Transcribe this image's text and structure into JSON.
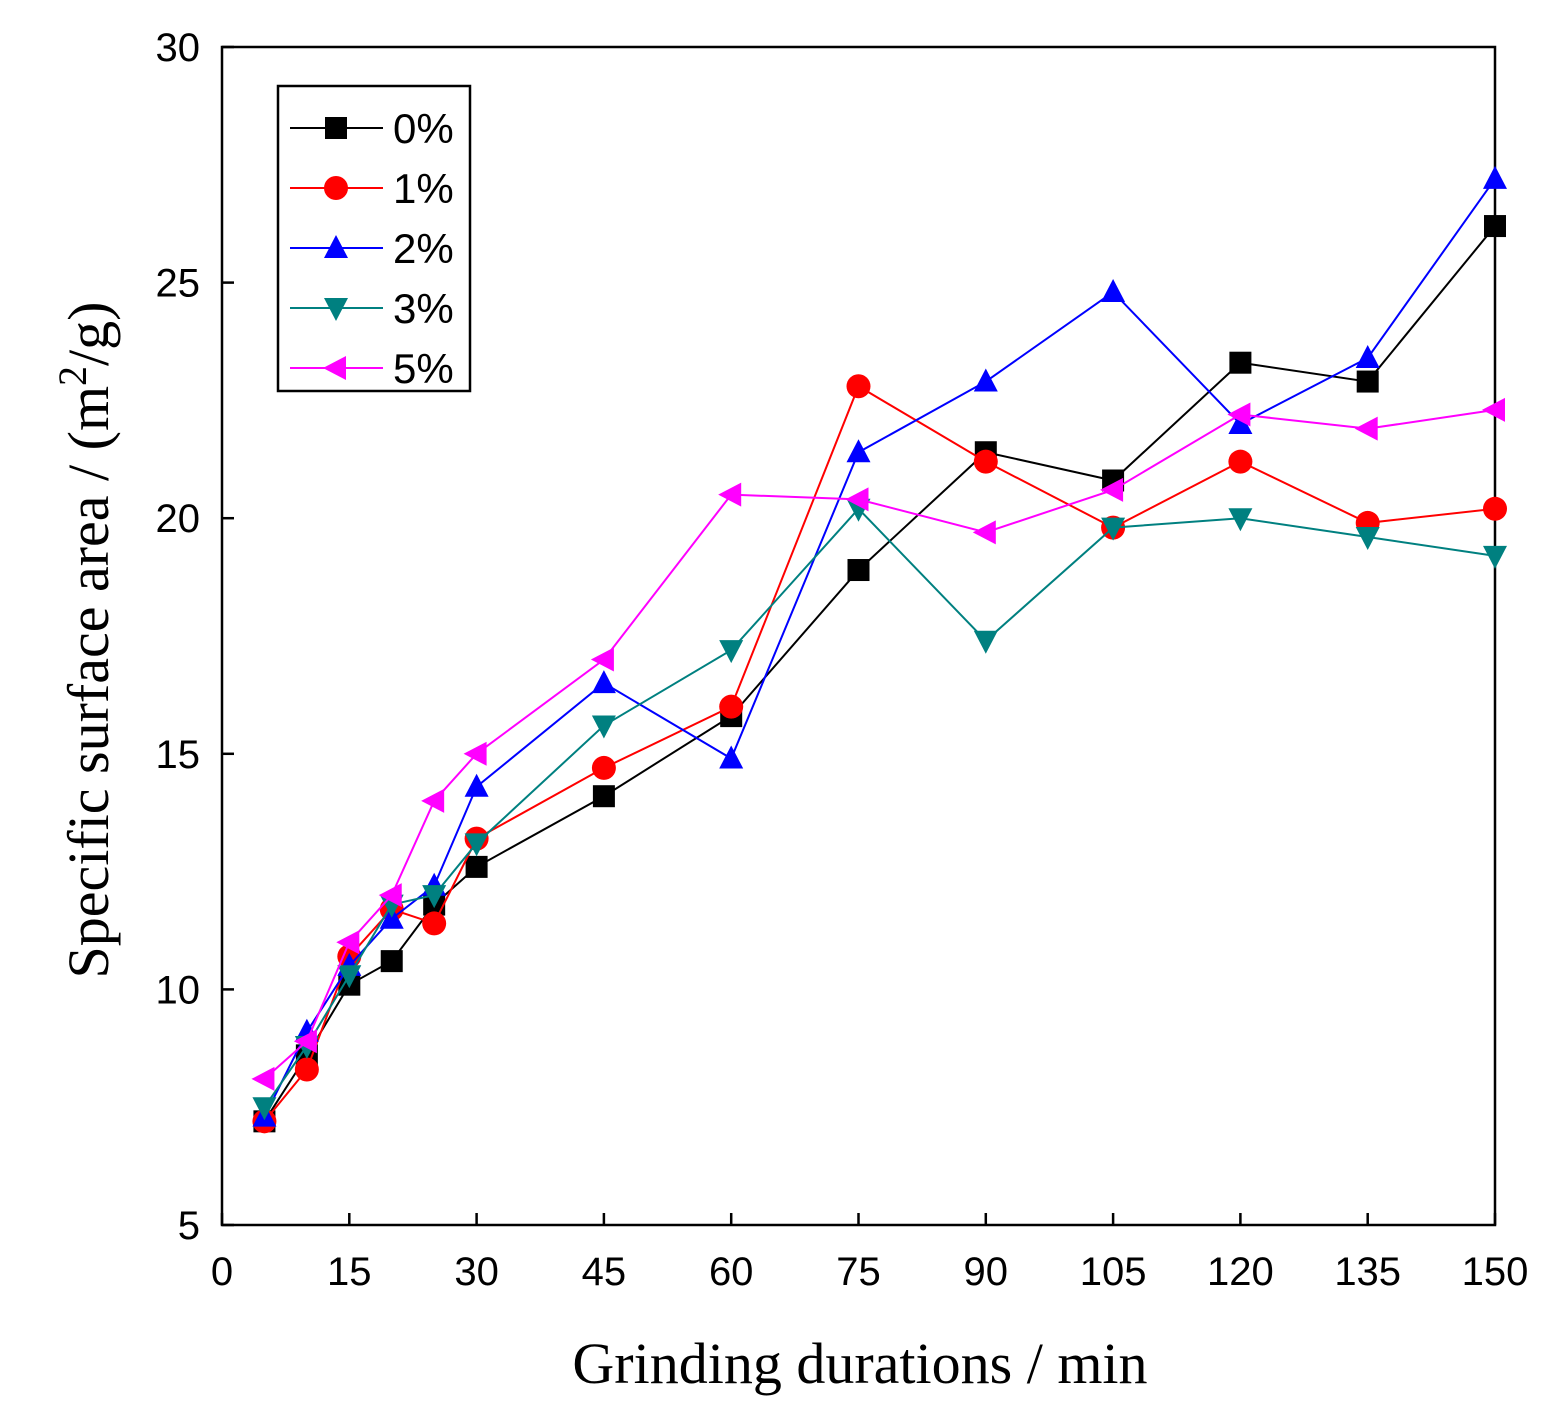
{
  "chart_data": {
    "type": "line",
    "title": "",
    "xlabel": "Grinding durations / min",
    "ylabel_prefix": "Specific surface area / (m",
    "ylabel_sup": "2",
    "ylabel_suffix": "/g)",
    "xlim": [
      0,
      150
    ],
    "ylim": [
      5,
      30
    ],
    "xticks": [
      0,
      15,
      30,
      45,
      60,
      75,
      90,
      105,
      120,
      135,
      150
    ],
    "yticks": [
      5,
      10,
      15,
      20,
      25,
      30
    ],
    "grid": false,
    "legend_position": "top-left",
    "x": [
      5,
      10,
      15,
      20,
      25,
      30,
      45,
      60,
      75,
      90,
      105,
      120,
      135,
      150
    ],
    "series": [
      {
        "name": "0%",
        "color": "#000000",
        "marker": "square",
        "values": [
          7.2,
          8.6,
          10.1,
          10.6,
          11.8,
          12.6,
          14.1,
          15.8,
          18.9,
          21.4,
          20.8,
          23.3,
          22.9,
          26.2
        ]
      },
      {
        "name": "1%",
        "color": "#ff0000",
        "marker": "circle",
        "values": [
          7.2,
          8.3,
          10.7,
          11.7,
          11.4,
          13.2,
          14.7,
          16.0,
          22.8,
          21.2,
          19.8,
          21.2,
          19.9,
          20.2
        ]
      },
      {
        "name": "2%",
        "color": "#0000ff",
        "marker": "triangle-up",
        "values": [
          7.3,
          9.1,
          10.5,
          11.5,
          12.2,
          14.3,
          16.5,
          14.9,
          21.4,
          22.9,
          24.8,
          22.0,
          23.4,
          27.2
        ]
      },
      {
        "name": "3%",
        "color": "#008080",
        "marker": "triangle-down",
        "values": [
          7.5,
          8.8,
          10.3,
          11.8,
          12.0,
          13.1,
          15.6,
          17.2,
          20.2,
          17.4,
          19.8,
          20.0,
          19.6,
          19.2
        ]
      },
      {
        "name": "5%",
        "color": "#ff00ff",
        "marker": "triangle-left",
        "values": [
          8.1,
          8.9,
          11.0,
          12.0,
          14.0,
          15.0,
          17.0,
          20.5,
          20.4,
          19.7,
          20.6,
          22.2,
          21.9,
          22.3
        ]
      }
    ]
  }
}
